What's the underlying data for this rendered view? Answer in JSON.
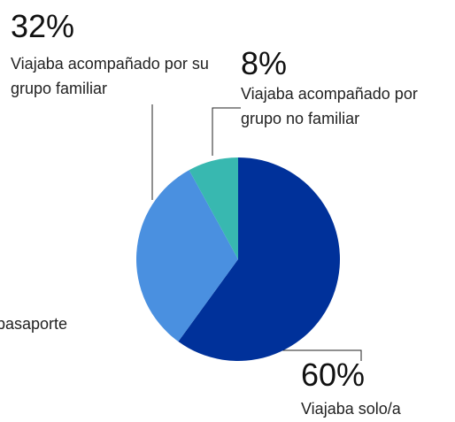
{
  "chart_data": {
    "type": "pie",
    "categories": [
      "Viajaba solo/a",
      "Viajaba acompañado por su grupo familiar",
      "Viajaba acompañado por grupo no familiar"
    ],
    "values": [
      60,
      32,
      8
    ],
    "value_labels": [
      "60%",
      "32%",
      "8%"
    ],
    "colors": [
      "#00319a",
      "#4a90e0",
      "#38b8b0"
    ],
    "annotations": [
      "pasaporte"
    ]
  }
}
